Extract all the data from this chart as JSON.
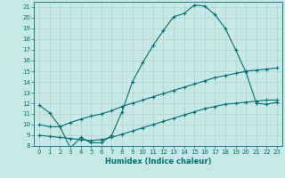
{
  "xlabel": "Humidex (Indice chaleur)",
  "bg_color": "#c8e8e8",
  "line_color": "#007070",
  "grid_color": "#b0c8c8",
  "xlim": [
    -0.5,
    23.5
  ],
  "ylim": [
    8,
    21.5
  ],
  "xticks": [
    0,
    1,
    2,
    3,
    4,
    5,
    6,
    7,
    8,
    9,
    10,
    11,
    12,
    13,
    14,
    15,
    16,
    17,
    18,
    19,
    20,
    21,
    22,
    23
  ],
  "yticks": [
    8,
    9,
    10,
    11,
    12,
    13,
    14,
    15,
    16,
    17,
    18,
    19,
    20,
    21
  ],
  "line1_x": [
    0,
    1,
    2,
    3,
    4,
    5,
    6,
    7,
    8,
    9,
    10,
    11,
    12,
    13,
    14,
    15,
    16,
    17,
    18,
    19,
    20,
    21,
    22,
    23
  ],
  "line1_y": [
    11.8,
    11.1,
    9.8,
    7.8,
    8.8,
    8.3,
    8.3,
    9.0,
    11.2,
    14.0,
    15.8,
    17.4,
    18.8,
    20.1,
    20.4,
    21.2,
    21.1,
    20.3,
    19.0,
    17.0,
    14.9,
    12.0,
    11.9,
    12.1
  ],
  "line2_x": [
    0,
    1,
    2,
    3,
    4,
    5,
    6,
    7,
    8,
    9,
    10,
    11,
    12,
    13,
    14,
    15,
    16,
    17,
    18,
    19,
    20,
    21,
    22,
    23
  ],
  "line2_y": [
    10.0,
    9.8,
    9.8,
    10.2,
    10.5,
    10.8,
    11.0,
    11.3,
    11.7,
    12.0,
    12.3,
    12.6,
    12.9,
    13.2,
    13.5,
    13.8,
    14.1,
    14.4,
    14.6,
    14.8,
    15.0,
    15.1,
    15.2,
    15.3
  ],
  "line3_x": [
    0,
    1,
    2,
    3,
    4,
    5,
    6,
    7,
    8,
    9,
    10,
    11,
    12,
    13,
    14,
    15,
    16,
    17,
    18,
    19,
    20,
    21,
    22,
    23
  ],
  "line3_y": [
    9.0,
    8.9,
    8.8,
    8.7,
    8.6,
    8.5,
    8.6,
    8.8,
    9.1,
    9.4,
    9.7,
    10.0,
    10.3,
    10.6,
    10.9,
    11.2,
    11.5,
    11.7,
    11.9,
    12.0,
    12.1,
    12.2,
    12.3,
    12.3
  ],
  "tick_fontsize": 5,
  "xlabel_fontsize": 6
}
